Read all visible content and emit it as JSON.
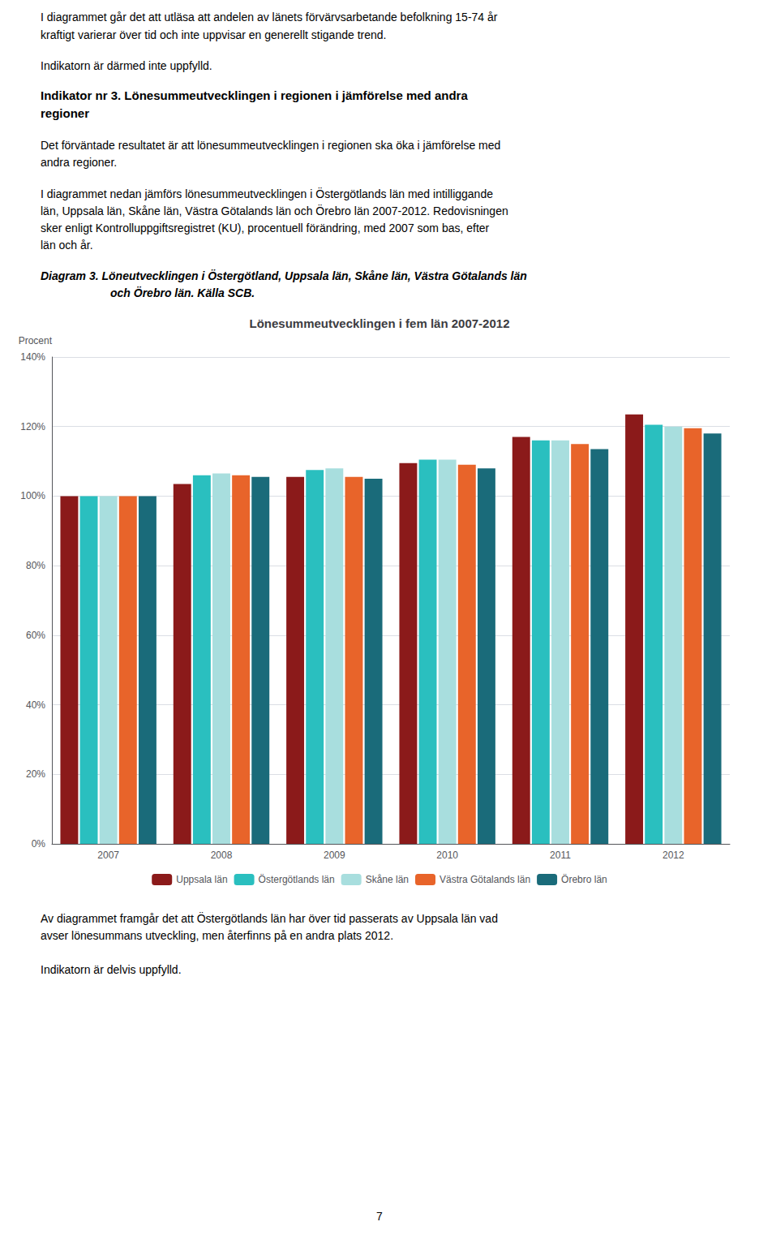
{
  "chart_data": {
    "type": "bar",
    "title": "Lönesummeutvecklingen i fem län 2007-2012",
    "y_label": "Procent",
    "categories": [
      "2007",
      "2008",
      "2009",
      "2010",
      "2011",
      "2012"
    ],
    "series": [
      {
        "name": "Uppsala län",
        "color": "#8B1A1A",
        "values": [
          100,
          103.5,
          105.5,
          109.5,
          117,
          123.5
        ]
      },
      {
        "name": "Östergötlands län",
        "color": "#2ABFBF",
        "values": [
          100,
          106,
          107.5,
          110.5,
          116,
          120.5
        ]
      },
      {
        "name": "Skåne län",
        "color": "#A8DEDE",
        "values": [
          100,
          106.5,
          108,
          110.5,
          116,
          120
        ]
      },
      {
        "name": "Västra Götalands län",
        "color": "#E8642A",
        "values": [
          100,
          106,
          105.5,
          109,
          115,
          119.5
        ]
      },
      {
        "name": "Örebro län",
        "color": "#1A6B7A",
        "values": [
          100,
          105.5,
          105,
          108,
          113.5,
          118
        ]
      }
    ],
    "ylim": [
      0,
      140
    ],
    "yticks": [
      {
        "value": 0,
        "label": "0%"
      },
      {
        "value": 20,
        "label": "20%"
      },
      {
        "value": 40,
        "label": "40%"
      },
      {
        "value": 60,
        "label": "60%"
      },
      {
        "value": 80,
        "label": "80%"
      },
      {
        "value": 100,
        "label": "100%"
      },
      {
        "value": 120,
        "label": "120%"
      },
      {
        "value": 140,
        "label": "140%"
      }
    ],
    "grid": true,
    "legend": "bottom",
    "annotations": [
      "I diagrammet går det att utläsa att andelen av länets förvärvsarbetande befolkning 15-74 år",
      "kraftigt varierar över tid och inte uppvisar en generellt stigande trend.",
      "Indikatorn är därmed inte uppfylld.",
      "Indikator nr 3. Lönesummeutvecklingen i regionen i jämförelse med andra",
      "regioner",
      "Det förväntade resultatet är att lönesummeutvecklingen i regionen ska öka i jämförelse med",
      "andra regioner.",
      "I diagrammet nedan jämförs lönesummeutvecklingen i Östergötlands län med intilliggande",
      "län, Uppsala län, Skåne län, Västra Götalands län och Örebro län 2007-2012. Redovisningen",
      "sker enligt Kontrolluppgiftsregistret (KU), procentuell förändring, med 2007 som bas, efter",
      "län och år.",
      "Diagram 3. Löneutvecklingen i Östergötland, Uppsala län, Skåne län, Västra Götalands län",
      "och Örebro län. Källa SCB.",
      "Av diagrammet framgår det att Östergötlands län har över tid passerats av Uppsala län vad",
      "avser lönesummans utveckling, men återfinns på en andra plats 2012.",
      "Indikatorn är delvis uppfylld.",
      "7"
    ]
  }
}
